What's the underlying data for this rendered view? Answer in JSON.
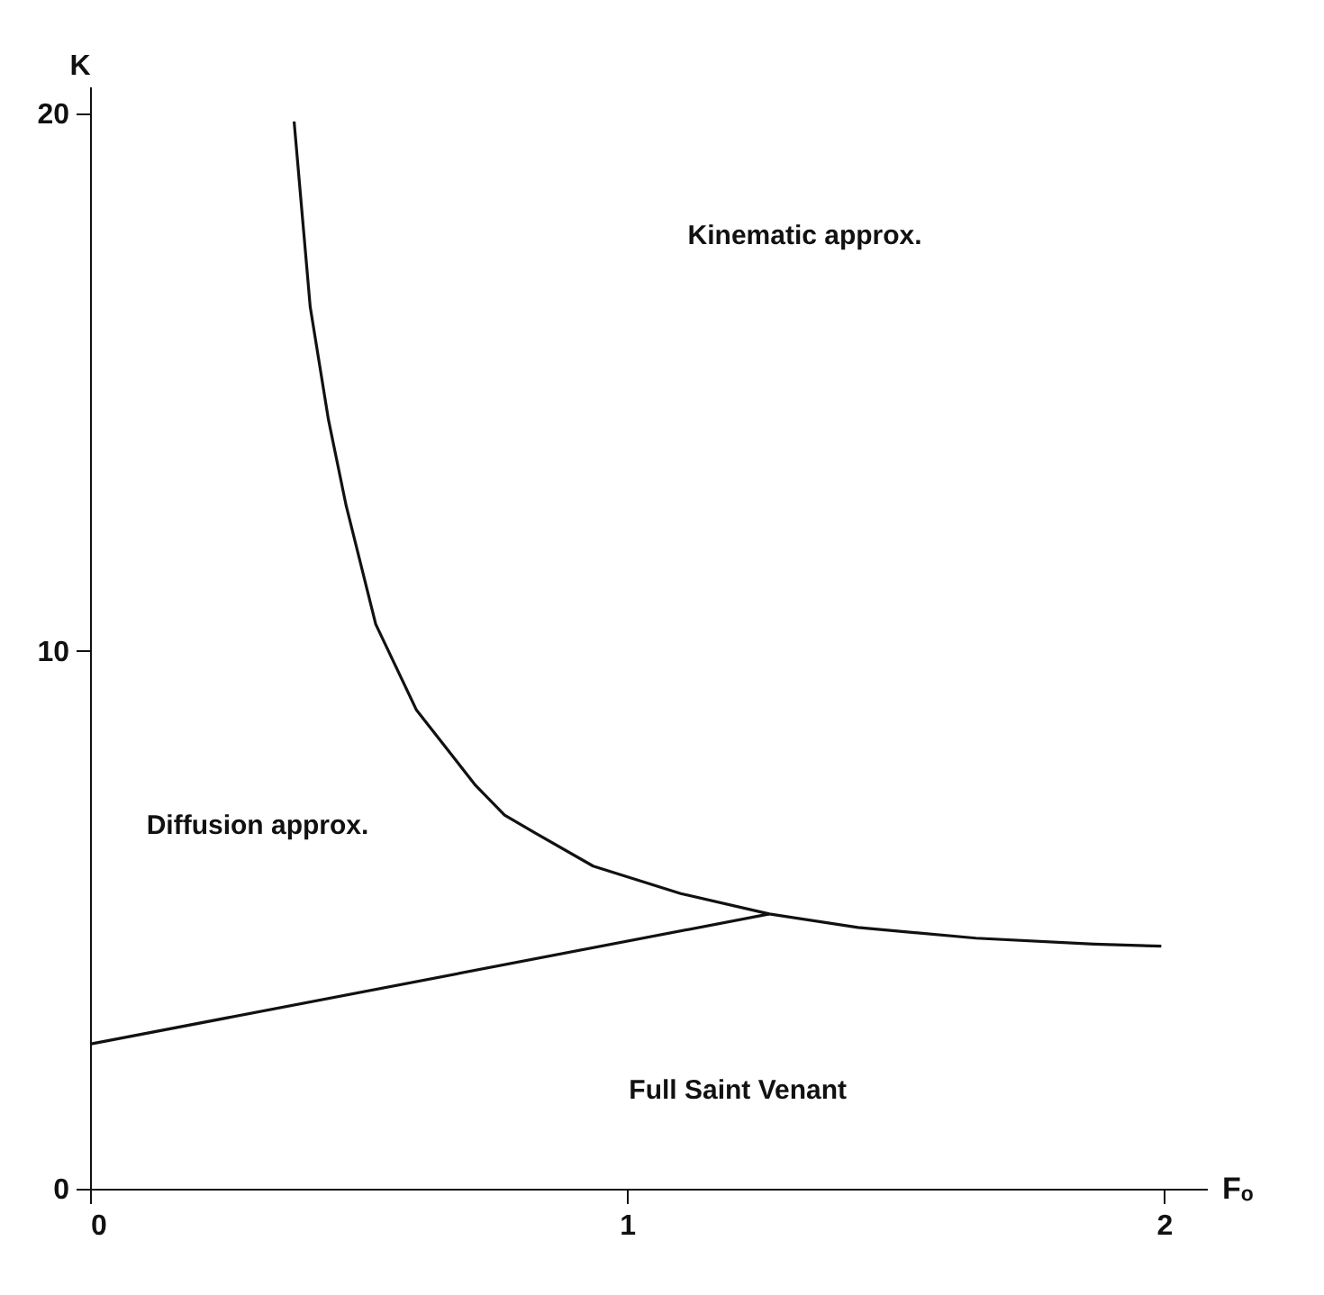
{
  "chart_data": {
    "type": "line",
    "xlabel": "Fₒ",
    "ylabel": "K",
    "xlim": [
      0,
      2.08
    ],
    "ylim": [
      0,
      20.5
    ],
    "xticks": [
      0,
      1,
      2
    ],
    "yticks": [
      0,
      10,
      20
    ],
    "grid": false,
    "marker": "none",
    "line_style": "solid",
    "series": [
      {
        "color": "#111111",
        "x": [
          0.38,
          0.41,
          0.444,
          0.477,
          0.532,
          0.608,
          0.718,
          0.772,
          0.828,
          0.937,
          1.1,
          1.265,
          1.43,
          1.65,
          1.87,
          1.995
        ],
        "values": [
          19.85,
          16.4,
          14.3,
          12.7,
          10.5,
          8.9,
          7.5,
          6.95,
          6.62,
          6.0,
          5.49,
          5.11,
          4.86,
          4.66,
          4.55,
          4.51
        ]
      },
      {
        "color": "#111111",
        "x": [
          0,
          1.265
        ],
        "values": [
          2.69,
          5.11
        ]
      }
    ],
    "annotations": [
      "Kinematic approx.",
      "Diffusion approx.",
      "Full Saint Venant"
    ]
  }
}
